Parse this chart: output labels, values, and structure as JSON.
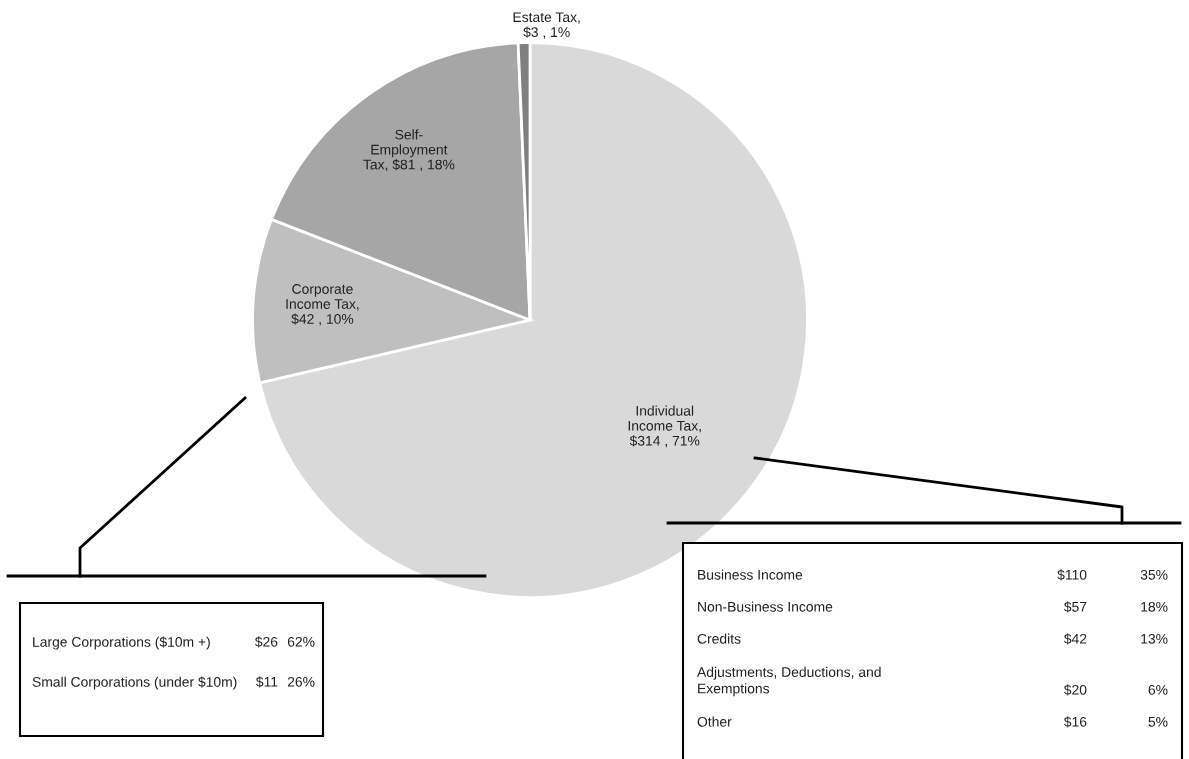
{
  "chart_data": [
    {
      "type": "pie",
      "categories": [
        "Individual\nIncome Tax",
        "Corporate\nIncome Tax",
        "Self-\nEmployment\nTax",
        "Estate Tax"
      ],
      "values": [
        314,
        42,
        81,
        3
      ],
      "colors": [
        "#d9d9d9",
        "#bfbfbf",
        "#a6a6a6",
        "#7f7f7f"
      ],
      "value_labels": [
        ",\n$314 , 71%",
        ",\n$42 , 10%",
        ", $81 , 18%",
        ",\n$3 , 1%"
      ]
    },
    {
      "type": "other",
      "annotations": [
        "Large Corporations ($10m +)",
        "$26",
        "62%",
        "Small Corporations (under $10m)",
        "$11",
        "26%"
      ]
    },
    {
      "type": "other",
      "annotations": [
        "Business Income",
        "$110",
        "35%",
        "Non-Business Income",
        "$57",
        "18%",
        "Credits",
        "$42",
        "13%",
        "Adjustments, Deductions, and\nExemptions",
        "$20",
        "6%",
        "Other",
        "$16",
        "5%"
      ]
    }
  ]
}
